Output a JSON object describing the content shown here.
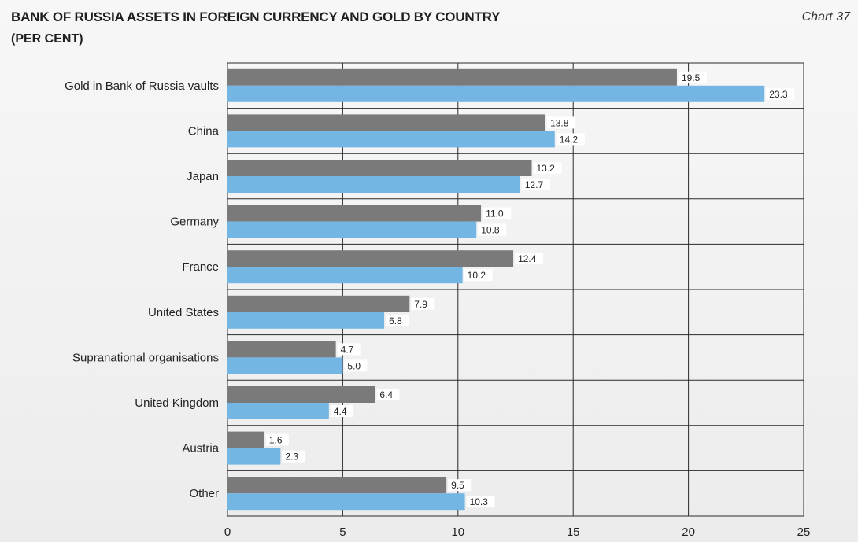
{
  "header": {
    "title": "BANK OF RUSSIA ASSETS IN FOREIGN CURRENCY AND GOLD BY COUNTRY",
    "subtitle": "(PER CENT)",
    "chart_number": "Chart 37"
  },
  "colors": {
    "series_1": "#7a7a7a",
    "series_2": "#74b6e3",
    "grid": "#2a2a2a"
  },
  "chart_data": {
    "type": "bar",
    "orientation": "horizontal",
    "title": "BANK OF RUSSIA ASSETS IN FOREIGN CURRENCY AND GOLD BY COUNTRY",
    "subtitle": "(PER CENT)",
    "categories": [
      "Gold in Bank of Russia vaults",
      "China",
      "Japan",
      "Germany",
      "France",
      "United States",
      "Supranational organisations",
      "United Kingdom",
      "Austria",
      "Other"
    ],
    "series": [
      {
        "values": [
          19.5,
          13.8,
          13.2,
          11.0,
          12.4,
          7.9,
          4.7,
          6.4,
          1.6,
          9.5
        ]
      },
      {
        "values": [
          23.3,
          14.2,
          12.7,
          10.8,
          10.2,
          6.8,
          5.0,
          4.4,
          2.3,
          10.3
        ]
      }
    ],
    "value_labels": [
      [
        "19.5",
        "13.8",
        "13.2",
        "11.0",
        "12.4",
        "7.9",
        "4.7",
        "6.4",
        "1.6",
        "9.5"
      ],
      [
        "23.3",
        "14.2",
        "12.7",
        "10.8",
        "10.2",
        "6.8",
        "5.0",
        "4.4",
        "2.3",
        "10.3"
      ]
    ],
    "xlim": [
      0,
      25
    ],
    "xticks": [
      "0",
      "5",
      "10",
      "15",
      "20",
      "25"
    ],
    "grid": true,
    "legend": "none"
  }
}
